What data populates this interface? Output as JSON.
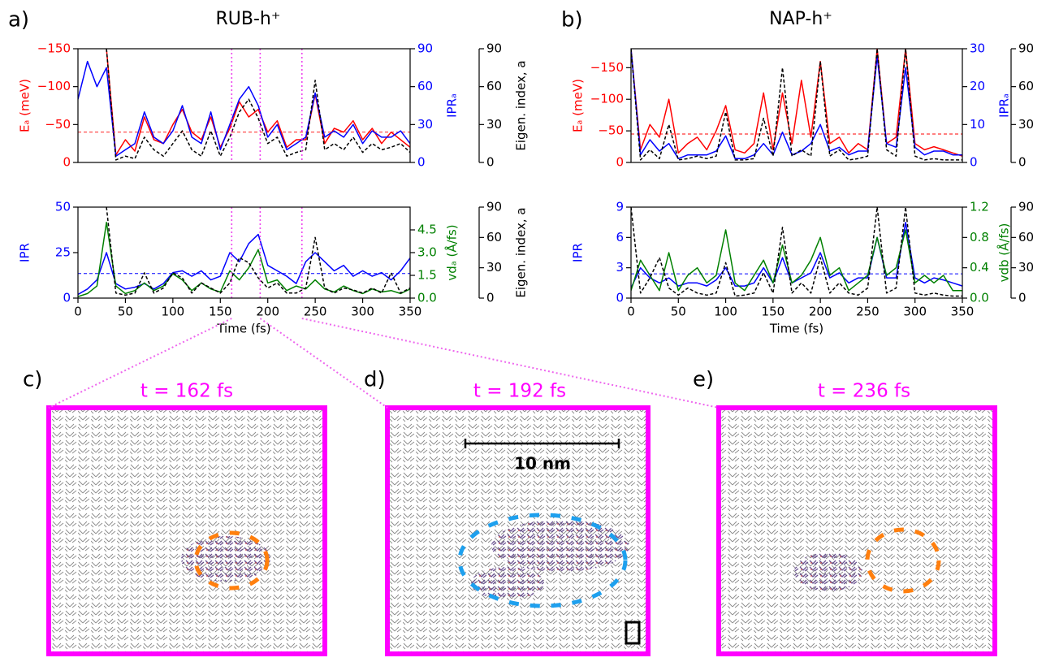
{
  "chart_data": [
    {
      "type": "line",
      "panel": "a)",
      "title": "RUB-h⁺",
      "ylabel": "Eₐ (meV)",
      "y2label": "IPRₐ",
      "y3label": "Eigen. index, a",
      "ycolor": "#ff0000",
      "y2color": "#0000ff",
      "y3color": "#000000",
      "x": [
        0,
        10,
        20,
        30,
        40,
        50,
        60,
        70,
        80,
        90,
        100,
        110,
        120,
        130,
        140,
        150,
        160,
        170,
        180,
        190,
        200,
        210,
        220,
        230,
        240,
        250,
        260,
        270,
        280,
        290,
        300,
        310,
        320,
        330,
        340,
        350
      ],
      "xlim": [
        0,
        350
      ],
      "ylim": [
        0,
        -150
      ],
      "yticks": [
        0,
        {
          "value": -50,
          "label": "−50"
        },
        {
          "value": -100,
          "label": "−100"
        },
        {
          "value": -150,
          "label": "−150"
        }
      ],
      "y2lim": [
        0,
        90
      ],
      "y2ticks": [
        0,
        30,
        60,
        90
      ],
      "y3lim": [
        0,
        90
      ],
      "y3ticks": [
        0,
        30,
        60,
        90
      ],
      "hlines": [
        {
          "value": -40,
          "axis": "y",
          "color": "#ff0000"
        }
      ],
      "vlines": [
        162,
        192,
        236
      ],
      "vline_color": "#ee44ee",
      "series": [
        {
          "axis": "y",
          "color": "#ff0000",
          "values": [
            null,
            null,
            null,
            -150,
            -10,
            -30,
            -15,
            -60,
            -30,
            -25,
            -50,
            -70,
            -40,
            -30,
            -60,
            -20,
            -45,
            -80,
            -60,
            -70,
            -40,
            -55,
            -20,
            -30,
            -30,
            -90,
            -25,
            -45,
            -40,
            -55,
            -30,
            -45,
            -25,
            -40,
            -30,
            -20
          ]
        },
        {
          "axis": "y2",
          "color": "#0000ff",
          "values": [
            50,
            80,
            60,
            75,
            5,
            10,
            15,
            40,
            20,
            15,
            25,
            45,
            20,
            15,
            40,
            10,
            30,
            50,
            60,
            45,
            20,
            30,
            10,
            15,
            20,
            55,
            20,
            25,
            20,
            30,
            15,
            25,
            20,
            20,
            25,
            15
          ]
        },
        {
          "axis": "y3",
          "color": "#000000",
          "dashed": true,
          "values": [
            null,
            null,
            null,
            90,
            2,
            5,
            3,
            20,
            10,
            5,
            15,
            25,
            10,
            5,
            25,
            5,
            20,
            40,
            50,
            35,
            15,
            20,
            5,
            8,
            10,
            65,
            10,
            15,
            10,
            20,
            8,
            15,
            10,
            12,
            15,
            8
          ]
        }
      ]
    },
    {
      "type": "line",
      "ylabel": "IPR",
      "y2label": "vdₐ (Å/fs)",
      "y3label": "Eigen. index, a",
      "xlabel": "Time (fs)",
      "ycolor": "#0000ff",
      "y2color": "#008000",
      "y3color": "#000000",
      "x": [
        0,
        10,
        20,
        30,
        40,
        50,
        60,
        70,
        80,
        90,
        100,
        110,
        120,
        130,
        140,
        150,
        160,
        170,
        180,
        190,
        200,
        210,
        220,
        230,
        240,
        250,
        260,
        270,
        280,
        290,
        300,
        310,
        320,
        330,
        340,
        350
      ],
      "xlim": [
        0,
        350
      ],
      "xticks": [
        0,
        50,
        100,
        150,
        200,
        250,
        300,
        350
      ],
      "ylim": [
        0,
        50
      ],
      "yticks": [
        0,
        25,
        50
      ],
      "y2lim": [
        0,
        6
      ],
      "y2ticks": [
        {
          "value": 0,
          "label": "0.0"
        },
        1.5,
        {
          "value": 3,
          "label": "3.0"
        },
        4.5
      ],
      "y3lim": [
        0,
        90
      ],
      "y3ticks": [
        0,
        30,
        60,
        90
      ],
      "hlines": [
        {
          "value": 13.5,
          "axis": "y",
          "color": "#0000ff"
        }
      ],
      "vlines": [
        162,
        192,
        236
      ],
      "vline_color": "#ee44ee",
      "series": [
        {
          "axis": "y",
          "color": "#0000ff",
          "values": [
            2,
            5,
            10,
            25,
            8,
            5,
            6,
            8,
            5,
            8,
            14,
            15,
            12,
            15,
            10,
            12,
            25,
            20,
            30,
            35,
            18,
            15,
            12,
            8,
            20,
            25,
            20,
            15,
            18,
            12,
            15,
            12,
            14,
            10,
            15,
            22
          ]
        },
        {
          "axis": "y2",
          "color": "#008000",
          "values": [
            0.1,
            0.3,
            0.8,
            5.0,
            0.8,
            0.3,
            0.5,
            1.0,
            0.5,
            0.8,
            1.6,
            1.2,
            0.5,
            1.0,
            0.6,
            0.4,
            1.8,
            1.2,
            2.0,
            3.2,
            1.0,
            1.2,
            0.5,
            0.8,
            0.6,
            1.2,
            0.6,
            0.4,
            0.8,
            0.5,
            0.3,
            0.6,
            0.4,
            0.5,
            0.3,
            0.6
          ]
        },
        {
          "axis": "y3",
          "color": "#000000",
          "dashed": true,
          "values": [
            null,
            null,
            null,
            90,
            5,
            3,
            5,
            25,
            5,
            10,
            25,
            20,
            5,
            15,
            10,
            5,
            15,
            40,
            35,
            20,
            10,
            15,
            5,
            5,
            10,
            60,
            10,
            5,
            10,
            8,
            5,
            10,
            5,
            25,
            5,
            10
          ]
        }
      ]
    },
    {
      "type": "line",
      "panel": "b)",
      "title": "NAP-h⁺",
      "ylabel": "Eₐ (meV)",
      "y2label": "IPRₐ",
      "y3label": "Eigen. index, a",
      "ycolor": "#ff0000",
      "y2color": "#0000ff",
      "y3color": "#000000",
      "x": [
        0,
        10,
        20,
        30,
        40,
        50,
        60,
        70,
        80,
        90,
        100,
        110,
        120,
        130,
        140,
        150,
        160,
        170,
        180,
        190,
        200,
        210,
        220,
        230,
        240,
        250,
        260,
        270,
        280,
        290,
        300,
        310,
        320,
        330,
        340,
        350
      ],
      "xlim": [
        0,
        350
      ],
      "ylim": [
        0,
        -180
      ],
      "yticks": [
        0,
        {
          "value": -50,
          "label": "−50"
        },
        {
          "value": -100,
          "label": "−100"
        },
        {
          "value": -150,
          "label": "−150"
        }
      ],
      "y2lim": [
        0,
        30
      ],
      "y2ticks": [
        0,
        10,
        20,
        30
      ],
      "y3lim": [
        0,
        90
      ],
      "y3ticks": [
        0,
        30,
        60,
        90
      ],
      "hlines": [
        {
          "value": -45,
          "axis": "y",
          "color": "#ff0000"
        }
      ],
      "series": [
        {
          "axis": "y",
          "color": "#ff0000",
          "values": [
            -180,
            -20,
            -60,
            -40,
            -100,
            -15,
            -30,
            -40,
            -20,
            -50,
            -90,
            -20,
            -15,
            -30,
            -110,
            -20,
            -110,
            -30,
            -130,
            -40,
            -160,
            -30,
            -40,
            -15,
            -30,
            -20,
            -180,
            -30,
            -40,
            -180,
            -30,
            -20,
            -25,
            -20,
            -15,
            -10
          ]
        },
        {
          "axis": "y2",
          "color": "#0000ff",
          "values": [
            30,
            2,
            6,
            3,
            5,
            1,
            2,
            2,
            2,
            3,
            7,
            1,
            1,
            2,
            5,
            2,
            8,
            2,
            3,
            5,
            10,
            3,
            4,
            2,
            3,
            3,
            28,
            5,
            4,
            25,
            4,
            2,
            3,
            3,
            2,
            2
          ]
        },
        {
          "axis": "y3",
          "color": "#000000",
          "dashed": true,
          "values": [
            90,
            2,
            10,
            3,
            30,
            2,
            3,
            5,
            3,
            5,
            40,
            2,
            2,
            3,
            35,
            5,
            75,
            5,
            10,
            5,
            80,
            5,
            10,
            2,
            3,
            5,
            90,
            10,
            5,
            90,
            5,
            2,
            3,
            2,
            2,
            2
          ]
        }
      ]
    },
    {
      "type": "line",
      "ylabel": "IPR",
      "y2label": "vdb (Å/fs)",
      "y3label": "Eigen. index, a",
      "xlabel": "Time (fs)",
      "ycolor": "#0000ff",
      "y2color": "#008000",
      "y3color": "#000000",
      "x": [
        0,
        10,
        20,
        30,
        40,
        50,
        60,
        70,
        80,
        90,
        100,
        110,
        120,
        130,
        140,
        150,
        160,
        170,
        180,
        190,
        200,
        210,
        220,
        230,
        240,
        250,
        260,
        270,
        280,
        290,
        300,
        310,
        320,
        330,
        340,
        350
      ],
      "xlim": [
        0,
        350
      ],
      "xticks": [
        0,
        50,
        100,
        150,
        200,
        250,
        300,
        350
      ],
      "ylim": [
        0,
        9
      ],
      "yticks": [
        0,
        3,
        6,
        9
      ],
      "y2lim": [
        0,
        1.2
      ],
      "y2ticks": [
        {
          "value": 0,
          "label": "0.0"
        },
        0.4,
        0.8,
        1.2
      ],
      "y3lim": [
        0,
        90
      ],
      "y3ticks": [
        0,
        30,
        60,
        90
      ],
      "hlines": [
        {
          "value": 2.4,
          "axis": "y",
          "color": "#0000ff"
        }
      ],
      "series": [
        {
          "axis": "y",
          "color": "#0000ff",
          "values": [
            1,
            3,
            2,
            1.5,
            2,
            1.2,
            1.5,
            1.5,
            1.2,
            1.8,
            3,
            1.2,
            1.2,
            1.5,
            3,
            1.5,
            4,
            1.5,
            2,
            2.5,
            4.5,
            2,
            2.5,
            1.5,
            2,
            2,
            6,
            2,
            2,
            7.5,
            2,
            1.5,
            2,
            1.8,
            1.5,
            1.2
          ]
        },
        {
          "axis": "y2",
          "color": "#008000",
          "values": [
            0.1,
            0.5,
            0.3,
            0.1,
            0.6,
            0.1,
            0.3,
            0.4,
            0.2,
            0.3,
            0.9,
            0.2,
            0.1,
            0.3,
            0.5,
            0.2,
            0.7,
            0.2,
            0.3,
            0.5,
            0.8,
            0.3,
            0.4,
            0.1,
            0.2,
            0.3,
            0.8,
            0.3,
            0.4,
            0.9,
            0.2,
            0.3,
            0.2,
            0.3,
            0.1,
            0.1
          ]
        },
        {
          "axis": "y3",
          "color": "#000000",
          "dashed": true,
          "values": [
            90,
            5,
            20,
            40,
            10,
            3,
            10,
            5,
            3,
            5,
            35,
            2,
            3,
            5,
            25,
            5,
            70,
            5,
            15,
            5,
            40,
            5,
            15,
            5,
            3,
            10,
            90,
            5,
            10,
            90,
            5,
            3,
            5,
            3,
            2,
            2
          ]
        }
      ]
    }
  ],
  "snapshots": [
    {
      "label": "c)",
      "title": "t = 162 fs"
    },
    {
      "label": "d)",
      "title": "t = 192 fs",
      "scale_bar": "10 nm"
    },
    {
      "label": "e)",
      "title": "t = 236 fs"
    }
  ]
}
